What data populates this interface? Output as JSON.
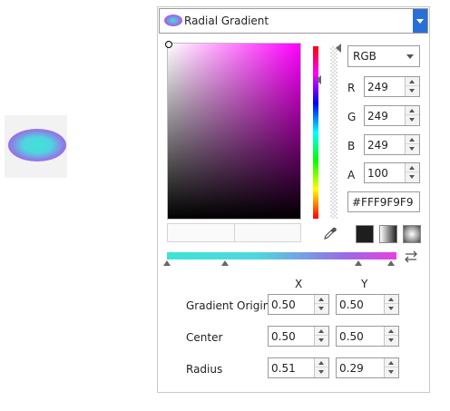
{
  "preview": {
    "icon": "radial-gradient-preview"
  },
  "brush_selector": {
    "label": "Radial Gradient"
  },
  "color_mode": {
    "selected": "RGB"
  },
  "channels": [
    {
      "label": "R",
      "value": "249"
    },
    {
      "label": "G",
      "value": "249"
    },
    {
      "label": "B",
      "value": "249"
    },
    {
      "label": "A",
      "value": "100"
    }
  ],
  "hex": {
    "value": "#FFF9F9F9"
  },
  "brush_types": [
    "solid-color",
    "linear-gradient",
    "radial-gradient"
  ],
  "gradient": {
    "stops_icons": [
      "gradient-stop",
      "gradient-stop",
      "gradient-stop",
      "gradient-stop"
    ],
    "colors": {
      "start": "#3ee4d6",
      "middle": "#9b6be6",
      "end": "#e83fe0"
    }
  },
  "columns": {
    "x": "X",
    "y": "Y"
  },
  "properties": [
    {
      "label": "Gradient Origin",
      "x": "0.50",
      "y": "0.50"
    },
    {
      "label": "Center",
      "x": "0.50",
      "y": "0.50"
    },
    {
      "label": "Radius",
      "x": "0.51",
      "y": "0.29"
    }
  ],
  "colors": {
    "accent": "#2a6fd6",
    "border": "#9a9a9a"
  }
}
